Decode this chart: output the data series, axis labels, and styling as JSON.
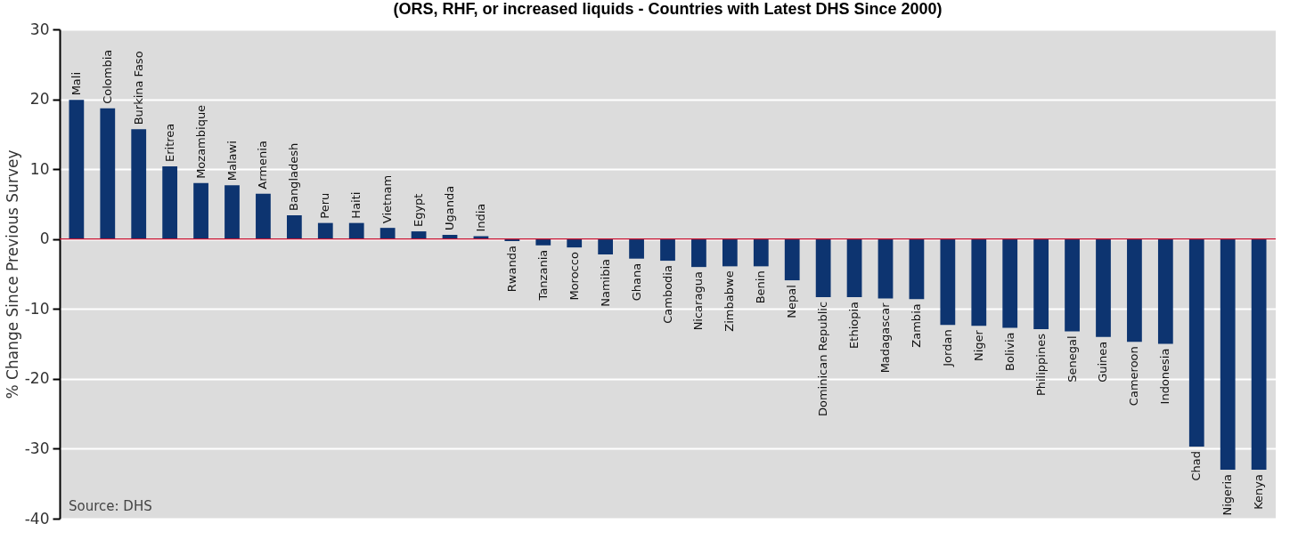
{
  "chart_data": {
    "type": "bar",
    "title": "(ORS, RHF, or increased liquids - Countries with Latest DHS Since 2000)",
    "ylabel": "% Change Since Previous Survey",
    "categories": [
      "Mali",
      "Colombia",
      "Burkina Faso",
      "Eritrea",
      "Mozambique",
      "Malawi",
      "Armenia",
      "Bangladesh",
      "Peru",
      "Haiti",
      "Vietnam",
      "Egypt",
      "Uganda",
      "India",
      "Rwanda",
      "Tanzania",
      "Morocco",
      "Namibia",
      "Ghana",
      "Cambodia",
      "Nicaragua",
      "Zimbabwe",
      "Benin",
      "Nepal",
      "Dominican Republic",
      "Ethiopia",
      "Madagascar",
      "Zambia",
      "Jordan",
      "Niger",
      "Bolivia",
      "Philippines",
      "Senegal",
      "Guinea",
      "Cameroon",
      "Indonesia",
      "Chad",
      "Nigeria",
      "Kenya"
    ],
    "values": [
      19.9,
      18.7,
      15.7,
      10.4,
      8.0,
      7.7,
      6.5,
      3.4,
      2.3,
      2.3,
      1.6,
      1.1,
      0.6,
      0.4,
      -0.3,
      -0.9,
      -1.2,
      -2.2,
      -2.8,
      -3.1,
      -4.0,
      -3.9,
      -3.9,
      -5.9,
      -8.3,
      -8.3,
      -8.5,
      -8.6,
      -12.3,
      -12.4,
      -12.7,
      -12.9,
      -13.2,
      -14.0,
      -14.7,
      -15.0,
      -29.7,
      -33.0,
      -33.0
    ],
    "color": "#0d3470",
    "ylim": [
      -40,
      30
    ],
    "yticks": [
      -40,
      -30,
      -20,
      -10,
      0,
      10,
      20,
      30
    ],
    "grid": "y",
    "tick_labels": "y",
    "ref_lines": [
      {
        "axis": "y",
        "value": 0,
        "color": "#c8102e"
      }
    ],
    "annotations": [
      "Source: DHS"
    ]
  }
}
